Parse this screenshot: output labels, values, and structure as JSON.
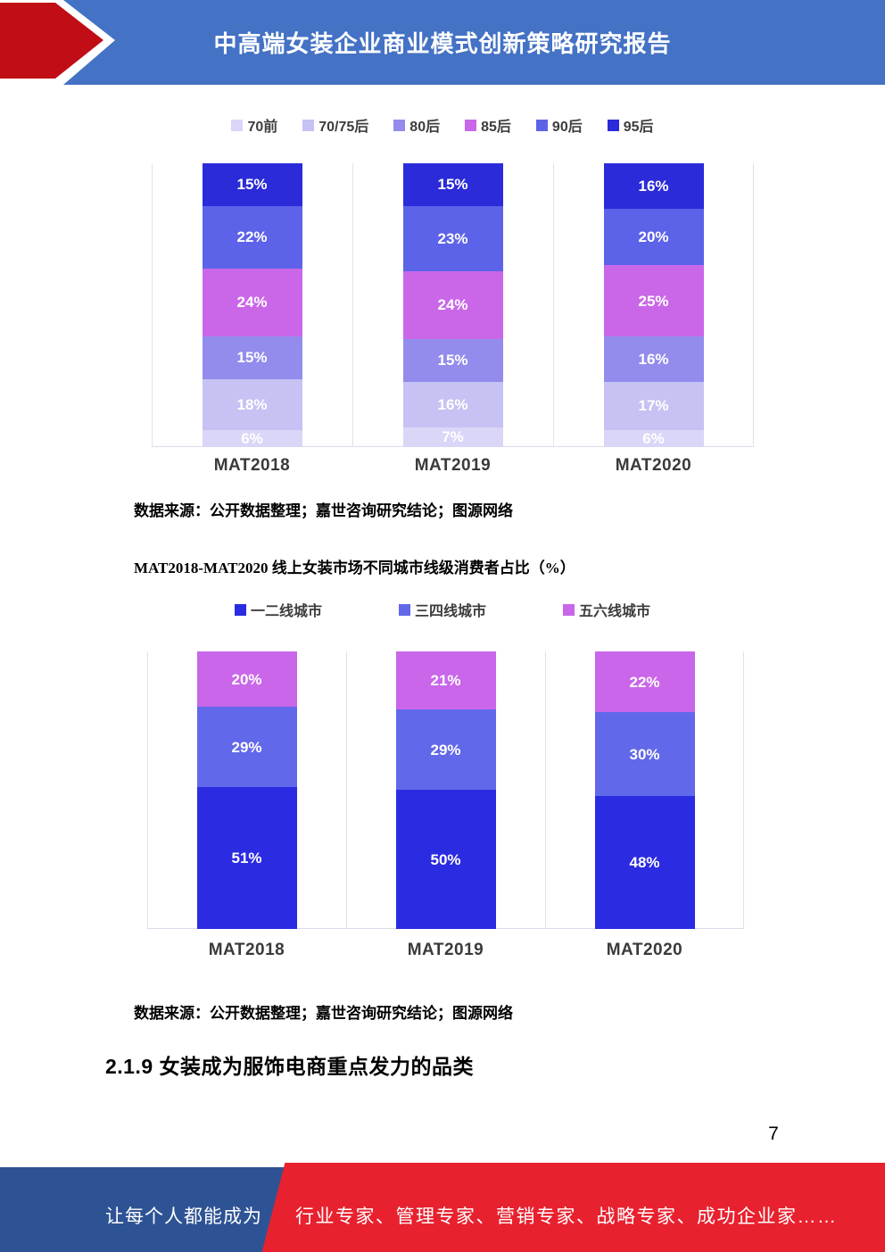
{
  "header": {
    "title": "中高端女装企业商业模式创新策略研究报告",
    "bg_color": "#4472c4",
    "arrow_color": "#c00d16"
  },
  "chart_data": [
    {
      "type": "bar",
      "stacked": true,
      "orientation": "vertical",
      "categories": [
        "MAT2018",
        "MAT2019",
        "MAT2020"
      ],
      "series": [
        {
          "name": "70前",
          "color": "#d9d6f7",
          "values": [
            6,
            7,
            6
          ]
        },
        {
          "name": "70/75后",
          "color": "#c6c2f3",
          "values": [
            18,
            16,
            17
          ]
        },
        {
          "name": "80后",
          "color": "#938cec",
          "values": [
            15,
            15,
            16
          ]
        },
        {
          "name": "85后",
          "color": "#ca67e8",
          "values": [
            24,
            24,
            25
          ]
        },
        {
          "name": "90后",
          "color": "#5d63e8",
          "values": [
            22,
            23,
            20
          ]
        },
        {
          "name": "95后",
          "color": "#2b2bd9",
          "values": [
            15,
            15,
            16
          ]
        }
      ],
      "unit": "%",
      "ylim": [
        0,
        100
      ],
      "legend_position": "top",
      "grid": "vertical-separators",
      "source": "数据来源：公开数据整理；嘉世咨询研究结论；图源网络"
    },
    {
      "title": "MAT2018-MAT2020 线上女装市场不同城市线级消费者占比（%）",
      "type": "bar",
      "stacked": true,
      "orientation": "vertical",
      "categories": [
        "MAT2018",
        "MAT2019",
        "MAT2020"
      ],
      "series": [
        {
          "name": "一二线城市",
          "color": "#2b2be2",
          "values": [
            51,
            50,
            48
          ]
        },
        {
          "name": "三四线城市",
          "color": "#6268ea",
          "values": [
            29,
            29,
            30
          ]
        },
        {
          "name": "五六线城市",
          "color": "#c966e9",
          "values": [
            20,
            21,
            22
          ]
        }
      ],
      "unit": "%",
      "ylim": [
        0,
        100
      ],
      "legend_position": "top",
      "grid": "vertical-separators",
      "source": "数据来源：公开数据整理；嘉世咨询研究结论；图源网络"
    }
  ],
  "section_heading": "2.1.9 女装成为服饰电商重点发力的品类",
  "page_number": "7",
  "footer": {
    "left_text": "让每个人都能成为",
    "right_text": "行业专家、管理专家、营销专家、战略专家、成功企业家……",
    "blue_color": "#2e5394",
    "red_color": "#e8212f"
  }
}
